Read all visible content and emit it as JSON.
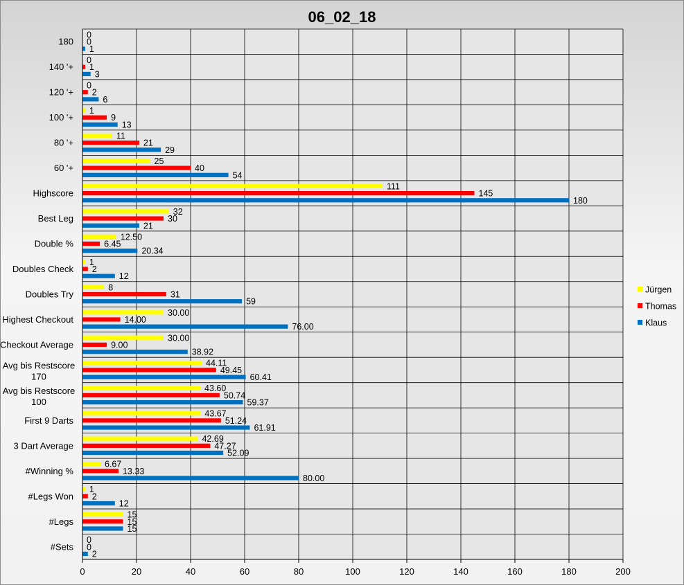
{
  "chart_data": {
    "type": "bar",
    "orientation": "horizontal",
    "title": "06_02_18",
    "xlabel": "",
    "ylabel": "",
    "xlim": [
      0,
      200
    ],
    "x_ticks": [
      0,
      20,
      40,
      60,
      80,
      100,
      120,
      140,
      160,
      180,
      200
    ],
    "grid": true,
    "legend_position": "right",
    "categories": [
      "180",
      "140 '+",
      "120 '+",
      "100 '+",
      "80 '+",
      "60 '+",
      "Highscore",
      "Best Leg",
      "Double %",
      "Doubles Check",
      "Doubles Try",
      "Highest Checkout",
      "Checkout Average",
      "Avg bis Restscore 170",
      "Avg bis Restscore 100",
      "First 9 Darts",
      "3 Dart Average",
      "#Winning %",
      "#Legs Won",
      "#Legs",
      "#Sets"
    ],
    "series": [
      {
        "name": "Jürgen",
        "color": "#ffff00",
        "values": [
          0,
          0,
          0,
          1,
          11,
          25,
          111,
          32,
          12.5,
          1,
          8,
          30,
          30,
          44.11,
          43.6,
          43.67,
          42.69,
          6.67,
          1,
          15,
          0
        ],
        "labels": [
          "0",
          "0",
          "0",
          "1",
          "11",
          "25",
          "111",
          "32",
          "12.50",
          "1",
          "8",
          "30.00",
          "30.00",
          "44.11",
          "43.60",
          "43.67",
          "42.69",
          "6.67",
          "1",
          "15",
          "0"
        ]
      },
      {
        "name": "Thomas",
        "color": "#ff0000",
        "values": [
          0,
          1,
          2,
          9,
          21,
          40,
          145,
          30,
          6.45,
          2,
          31,
          14,
          9,
          49.45,
          50.74,
          51.24,
          47.27,
          13.33,
          2,
          15,
          0
        ],
        "labels": [
          "0",
          "1",
          "2",
          "9",
          "21",
          "40",
          "145",
          "30",
          "6.45",
          "2",
          "31",
          "14.00",
          "9.00",
          "49.45",
          "50.74",
          "51.24",
          "47.27",
          "13.33",
          "2",
          "15",
          "0"
        ]
      },
      {
        "name": "Klaus",
        "color": "#0070c0",
        "values": [
          1,
          3,
          6,
          13,
          29,
          54,
          180,
          21,
          20.34,
          12,
          59,
          76,
          38.92,
          60.41,
          59.37,
          61.91,
          52.09,
          80,
          12,
          15,
          2
        ],
        "labels": [
          "1",
          "3",
          "6",
          "13",
          "29",
          "54",
          "180",
          "21",
          "20.34",
          "12",
          "59",
          "76.00",
          "38.92",
          "60.41",
          "59.37",
          "61.91",
          "52.09",
          "80.00",
          "12",
          "15",
          "2"
        ]
      }
    ]
  }
}
